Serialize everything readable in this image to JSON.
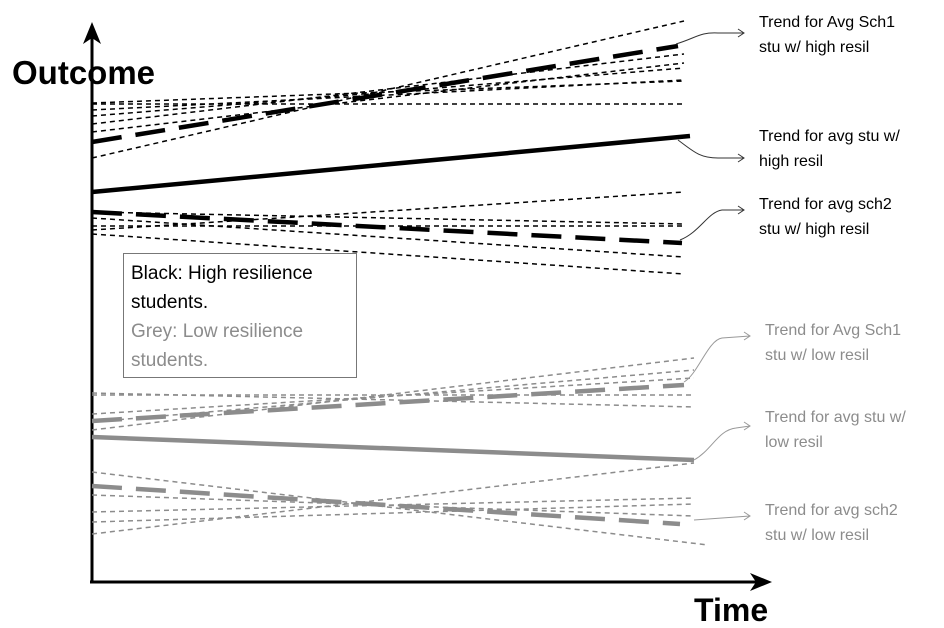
{
  "axes": {
    "y_title": "Outcome",
    "x_title": "Time"
  },
  "legend": {
    "black_line1": "Black: High resilience",
    "black_line2": "students.",
    "grey_line1": "Grey: Low resilience",
    "grey_line2": "students."
  },
  "labels": [
    {
      "id": "high-sch1",
      "line1": "Trend for Avg Sch1",
      "line2": "stu w/ high resil",
      "color": "black"
    },
    {
      "id": "high-avg",
      "line1": "Trend for avg stu w/",
      "line2": "high resil",
      "color": "black"
    },
    {
      "id": "high-sch2",
      "line1": "Trend for avg  sch2",
      "line2": "stu w/ high resil",
      "color": "black"
    },
    {
      "id": "low-sch1",
      "line1": "Trend for Avg Sch1",
      "line2": "stu w/ low resil",
      "color": "grey"
    },
    {
      "id": "low-avg",
      "line1": "Trend for avg stu w/",
      "line2": "low resil",
      "color": "grey"
    },
    {
      "id": "low-sch2",
      "line1": "Trend for avg  sch2",
      "line2": "stu w/ low resil",
      "color": "grey"
    }
  ],
  "colors": {
    "high": "#000000",
    "low": "#8c8c8c",
    "axis": "#000000"
  }
}
